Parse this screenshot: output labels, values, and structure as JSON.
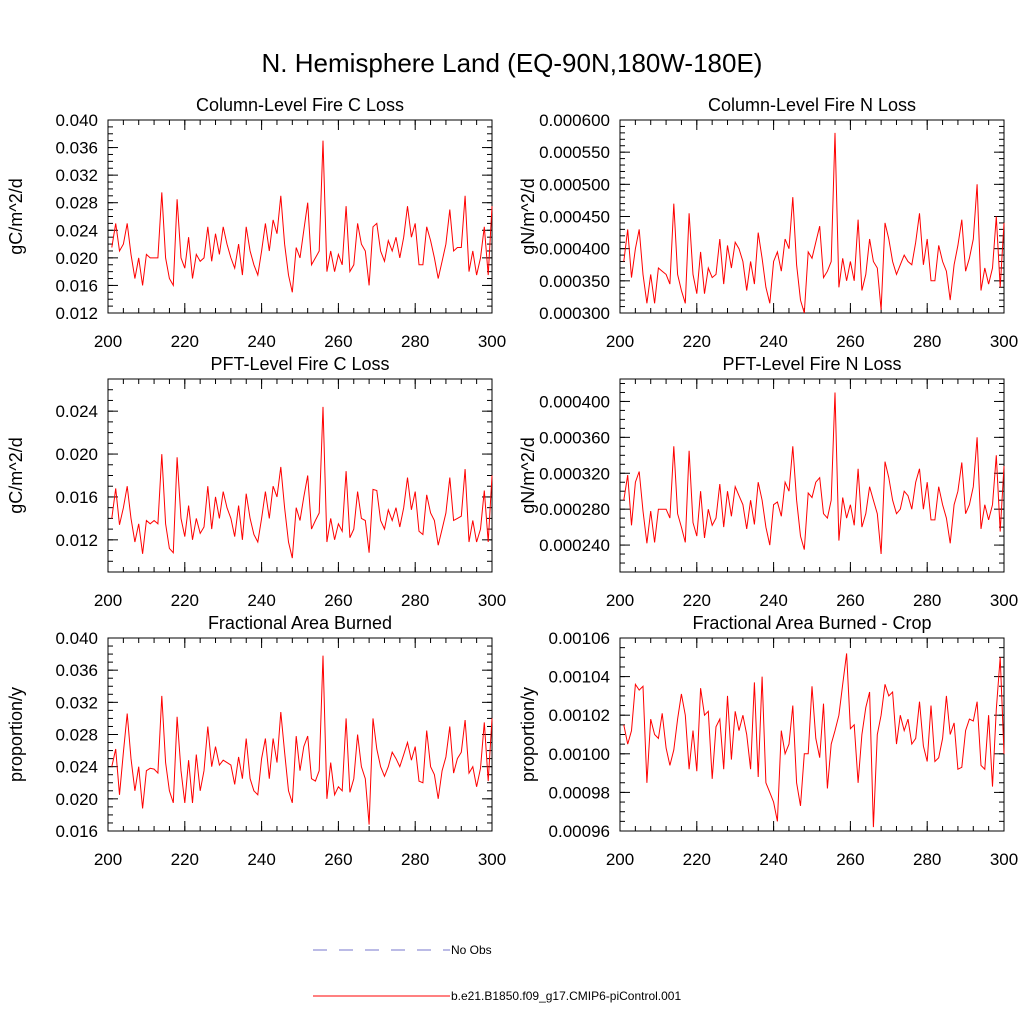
{
  "figure": {
    "title": "N. Hemisphere Land (EQ-90N,180W-180E)"
  },
  "legend": {
    "items": [
      {
        "label": "No Obs",
        "style": "dashed",
        "color": "#7777cc"
      },
      {
        "label": "b.e21.B1850.f09_g17.CMIP6-piControl.001",
        "style": "solid",
        "color": "#ff0000"
      }
    ]
  },
  "line_color": "#ff0000",
  "chart_data": [
    {
      "type": "line",
      "title": "Column-Level Fire C Loss",
      "xlabel": "",
      "ylabel": "gC/m^2/d",
      "xlim": [
        200,
        300
      ],
      "ylim": [
        0.012,
        0.04
      ],
      "xticks": [
        200,
        220,
        240,
        260,
        280,
        300
      ],
      "xtick_labels": [
        "200",
        "220",
        "240",
        "260",
        "280",
        "300"
      ],
      "yticks": [
        0.012,
        0.016,
        0.02,
        0.024,
        0.028,
        0.032,
        0.036,
        0.04
      ],
      "ytick_labels": [
        "0.012",
        "0.016",
        "0.020",
        "0.024",
        "0.028",
        "0.032",
        "0.036",
        "0.040"
      ],
      "yminor": 0.001,
      "x_start": 201,
      "series": [
        {
          "name": "b.e21.B1850.f09_g17.CMIP6-piControl.001",
          "values": [
            0.0215,
            0.025,
            0.021,
            0.022,
            0.025,
            0.0205,
            0.017,
            0.02,
            0.016,
            0.0205,
            0.02,
            0.02,
            0.02,
            0.0295,
            0.02,
            0.017,
            0.016,
            0.0285,
            0.02,
            0.0185,
            0.023,
            0.017,
            0.0205,
            0.0195,
            0.02,
            0.0245,
            0.0195,
            0.0235,
            0.0205,
            0.0245,
            0.022,
            0.02,
            0.0185,
            0.022,
            0.0175,
            0.0245,
            0.021,
            0.019,
            0.0175,
            0.021,
            0.025,
            0.021,
            0.0255,
            0.0235,
            0.029,
            0.022,
            0.0175,
            0.015,
            0.0215,
            0.02,
            0.024,
            0.028,
            0.019,
            0.02,
            0.021,
            0.037,
            0.018,
            0.021,
            0.018,
            0.0205,
            0.019,
            0.0275,
            0.018,
            0.019,
            0.025,
            0.022,
            0.021,
            0.016,
            0.0245,
            0.025,
            0.021,
            0.0195,
            0.0225,
            0.021,
            0.023,
            0.02,
            0.023,
            0.0275,
            0.023,
            0.025,
            0.019,
            0.019,
            0.0245,
            0.0225,
            0.02,
            0.017,
            0.0195,
            0.022,
            0.027,
            0.021,
            0.0215,
            0.0215,
            0.029,
            0.018,
            0.021,
            0.0175,
            0.02,
            0.0245,
            0.0175,
            0.0275
          ]
        }
      ]
    },
    {
      "type": "line",
      "title": "Column-Level Fire N Loss",
      "xlabel": "",
      "ylabel": "gN/m^2/d",
      "xlim": [
        200,
        300
      ],
      "ylim": [
        0.0003,
        0.0006
      ],
      "xticks": [
        200,
        220,
        240,
        260,
        280,
        300
      ],
      "xtick_labels": [
        "200",
        "220",
        "240",
        "260",
        "280",
        "300"
      ],
      "yticks": [
        0.0003,
        0.00035,
        0.0004,
        0.00045,
        0.0005,
        0.00055,
        0.0006
      ],
      "ytick_labels": [
        "0.000300",
        "0.000350",
        "0.000400",
        "0.000450",
        "0.000500",
        "0.000550",
        "0.000600"
      ],
      "yminor": 1e-05,
      "x_start": 201,
      "series": [
        {
          "name": "b.e21.B1850.f09_g17.CMIP6-piControl.001",
          "values": [
            0.00038,
            0.00043,
            0.000355,
            0.0004,
            0.00043,
            0.00036,
            0.000315,
            0.00036,
            0.000315,
            0.00037,
            0.000365,
            0.00036,
            0.000345,
            0.00047,
            0.00036,
            0.000335,
            0.000315,
            0.000455,
            0.00036,
            0.00033,
            0.000395,
            0.00033,
            0.00037,
            0.000355,
            0.00036,
            0.000415,
            0.000345,
            0.000405,
            0.00037,
            0.00041,
            0.0004,
            0.00038,
            0.000335,
            0.00038,
            0.000345,
            0.000425,
            0.000385,
            0.00034,
            0.000315,
            0.00038,
            0.000395,
            0.000365,
            0.000415,
            0.0004,
            0.00048,
            0.000375,
            0.00032,
            0.0003,
            0.000395,
            0.000385,
            0.00041,
            0.000435,
            0.000355,
            0.000365,
            0.00038,
            0.00058,
            0.00034,
            0.000385,
            0.00035,
            0.00038,
            0.00035,
            0.000445,
            0.000335,
            0.00036,
            0.000415,
            0.00038,
            0.00037,
            0.000305,
            0.00044,
            0.000415,
            0.00038,
            0.00036,
            0.000375,
            0.00039,
            0.00038,
            0.000375,
            0.00041,
            0.000455,
            0.000375,
            0.000415,
            0.00035,
            0.00035,
            0.000405,
            0.00038,
            0.000365,
            0.00032,
            0.000375,
            0.000405,
            0.000445,
            0.000365,
            0.000385,
            0.000415,
            0.0005,
            0.000335,
            0.00037,
            0.000345,
            0.00037,
            0.00045,
            0.00034,
            0.00044
          ]
        }
      ]
    },
    {
      "type": "line",
      "title": "PFT-Level Fire C Loss",
      "xlabel": "",
      "ylabel": "gC/m^2/d",
      "xlim": [
        200,
        300
      ],
      "ylim": [
        0.009,
        0.027
      ],
      "xticks": [
        200,
        220,
        240,
        260,
        280,
        300
      ],
      "xtick_labels": [
        "200",
        "220",
        "240",
        "260",
        "280",
        "300"
      ],
      "yticks": [
        0.012,
        0.016,
        0.02,
        0.024
      ],
      "ytick_labels": [
        "0.012",
        "0.016",
        "0.020",
        "0.024"
      ],
      "yminor": 0.001,
      "x_start": 201,
      "series": [
        {
          "name": "b.e21.B1850.f09_g17.CMIP6-piControl.001",
          "values": [
            0.014,
            0.0168,
            0.0134,
            0.015,
            0.017,
            0.014,
            0.0118,
            0.0135,
            0.0107,
            0.0138,
            0.0135,
            0.0138,
            0.0135,
            0.02,
            0.0135,
            0.0112,
            0.0108,
            0.0197,
            0.014,
            0.0123,
            0.0152,
            0.012,
            0.014,
            0.0126,
            0.0132,
            0.017,
            0.013,
            0.016,
            0.014,
            0.0165,
            0.015,
            0.014,
            0.0123,
            0.0152,
            0.012,
            0.0163,
            0.014,
            0.0125,
            0.0118,
            0.014,
            0.0165,
            0.014,
            0.017,
            0.016,
            0.0188,
            0.015,
            0.0118,
            0.0103,
            0.015,
            0.0138,
            0.016,
            0.018,
            0.013,
            0.0138,
            0.0145,
            0.0244,
            0.0118,
            0.014,
            0.012,
            0.0135,
            0.0128,
            0.0184,
            0.0122,
            0.013,
            0.0165,
            0.014,
            0.0138,
            0.0108,
            0.0167,
            0.0166,
            0.0138,
            0.013,
            0.0148,
            0.0138,
            0.015,
            0.0132,
            0.015,
            0.0178,
            0.0148,
            0.0165,
            0.0128,
            0.0125,
            0.0162,
            0.0145,
            0.0138,
            0.0115,
            0.013,
            0.0145,
            0.0178,
            0.0138,
            0.014,
            0.0142,
            0.0186,
            0.0118,
            0.0138,
            0.0118,
            0.013,
            0.0166,
            0.0118,
            0.018
          ]
        }
      ]
    },
    {
      "type": "line",
      "title": "PFT-Level Fire N Loss",
      "xlabel": "",
      "ylabel": "gN/m^2/d",
      "xlim": [
        200,
        300
      ],
      "ylim": [
        0.00021,
        0.000425
      ],
      "xticks": [
        200,
        220,
        240,
        260,
        280,
        300
      ],
      "xtick_labels": [
        "200",
        "220",
        "240",
        "260",
        "280",
        "300"
      ],
      "yticks": [
        0.00024,
        0.00028,
        0.00032,
        0.00036,
        0.0004
      ],
      "ytick_labels": [
        "0.000240",
        "0.000280",
        "0.000320",
        "0.000360",
        "0.000400"
      ],
      "yminor": 1e-05,
      "x_start": 201,
      "series": [
        {
          "name": "b.e21.B1850.f09_g17.CMIP6-piControl.001",
          "values": [
            0.00029,
            0.000318,
            0.000262,
            0.00031,
            0.000322,
            0.000278,
            0.000242,
            0.000278,
            0.000243,
            0.00028,
            0.00028,
            0.00028,
            0.00027,
            0.00035,
            0.000275,
            0.00026,
            0.000243,
            0.000345,
            0.000265,
            0.00025,
            0.0003,
            0.000248,
            0.00028,
            0.000262,
            0.00027,
            0.000308,
            0.00026,
            0.0003,
            0.000272,
            0.000305,
            0.000295,
            0.000285,
            0.000258,
            0.00029,
            0.000263,
            0.00031,
            0.00029,
            0.00026,
            0.00024,
            0.000285,
            0.000288,
            0.000272,
            0.00031,
            0.0003,
            0.00035,
            0.00029,
            0.00025,
            0.000235,
            0.000298,
            0.000293,
            0.00031,
            0.000315,
            0.000275,
            0.00027,
            0.00029,
            0.00041,
            0.000245,
            0.000293,
            0.00027,
            0.000285,
            0.000262,
            0.000325,
            0.00026,
            0.000275,
            0.000305,
            0.00029,
            0.000275,
            0.00023,
            0.000333,
            0.000315,
            0.00029,
            0.000275,
            0.00028,
            0.0003,
            0.000295,
            0.00028,
            0.00031,
            0.000325,
            0.00028,
            0.00031,
            0.000268,
            0.000268,
            0.000305,
            0.000285,
            0.00027,
            0.000242,
            0.000285,
            0.0003,
            0.000332,
            0.000275,
            0.000285,
            0.000305,
            0.00036,
            0.000258,
            0.000285,
            0.000268,
            0.000285,
            0.00034,
            0.000255,
            0.000328
          ]
        }
      ]
    },
    {
      "type": "line",
      "title": "Fractional Area Burned",
      "xlabel": "",
      "ylabel": "proportion/y",
      "xlim": [
        200,
        300
      ],
      "ylim": [
        0.016,
        0.04
      ],
      "xticks": [
        200,
        220,
        240,
        260,
        280,
        300
      ],
      "xtick_labels": [
        "200",
        "220",
        "240",
        "260",
        "280",
        "300"
      ],
      "yticks": [
        0.016,
        0.02,
        0.024,
        0.028,
        0.032,
        0.036,
        0.04
      ],
      "ytick_labels": [
        "0.016",
        "0.020",
        "0.024",
        "0.028",
        "0.032",
        "0.036",
        "0.040"
      ],
      "yminor": 0.001,
      "x_start": 201,
      "series": [
        {
          "name": "b.e21.B1850.f09_g17.CMIP6-piControl.001",
          "values": [
            0.024,
            0.0262,
            0.0205,
            0.0258,
            0.0306,
            0.025,
            0.021,
            0.024,
            0.0188,
            0.0235,
            0.0238,
            0.0237,
            0.0232,
            0.0328,
            0.0245,
            0.021,
            0.0195,
            0.0302,
            0.0235,
            0.0195,
            0.0248,
            0.0195,
            0.0255,
            0.021,
            0.0235,
            0.029,
            0.024,
            0.0265,
            0.0242,
            0.0248,
            0.0245,
            0.0242,
            0.0218,
            0.0252,
            0.0225,
            0.0275,
            0.0225,
            0.021,
            0.0205,
            0.025,
            0.0275,
            0.0225,
            0.0275,
            0.0245,
            0.0308,
            0.0258,
            0.021,
            0.0195,
            0.0278,
            0.0235,
            0.0265,
            0.0278,
            0.0225,
            0.0222,
            0.0235,
            0.0378,
            0.02,
            0.0245,
            0.0205,
            0.0215,
            0.021,
            0.03,
            0.0208,
            0.0225,
            0.028,
            0.024,
            0.0225,
            0.0168,
            0.03,
            0.0262,
            0.024,
            0.0228,
            0.024,
            0.0258,
            0.025,
            0.024,
            0.0255,
            0.027,
            0.0248,
            0.0265,
            0.0222,
            0.022,
            0.0285,
            0.024,
            0.023,
            0.02,
            0.0235,
            0.0252,
            0.029,
            0.0232,
            0.025,
            0.0258,
            0.0298,
            0.0232,
            0.024,
            0.0215,
            0.0238,
            0.0295,
            0.0222,
            0.03
          ]
        }
      ]
    },
    {
      "type": "line",
      "title": "Fractional Area Burned - Crop",
      "xlabel": "",
      "ylabel": "proportion/y",
      "xlim": [
        200,
        300
      ],
      "ylim": [
        0.00096,
        0.00106
      ],
      "xticks": [
        200,
        220,
        240,
        260,
        280,
        300
      ],
      "xtick_labels": [
        "200",
        "220",
        "240",
        "260",
        "280",
        "300"
      ],
      "yticks": [
        0.00096,
        0.00098,
        0.001,
        0.00102,
        0.00104,
        0.00106
      ],
      "ytick_labels": [
        "0.00096",
        "0.00098",
        "0.00100",
        "0.00102",
        "0.00104",
        "0.00106"
      ],
      "yminor": 5e-06,
      "x_start": 201,
      "series": [
        {
          "name": "b.e21.B1850.f09_g17.CMIP6-piControl.001",
          "values": [
            0.001015,
            0.001005,
            0.001012,
            0.001036,
            0.001033,
            0.001035,
            0.000985,
            0.001018,
            0.00101,
            0.001008,
            0.001021,
            0.001003,
            0.000994,
            0.001002,
            0.001018,
            0.001031,
            0.00102,
            0.000992,
            0.001012,
            0.000991,
            0.001034,
            0.00102,
            0.001022,
            0.000987,
            0.001014,
            0.001018,
            0.000992,
            0.00103,
            0.000997,
            0.001022,
            0.001012,
            0.00102,
            0.00101,
            0.000992,
            0.001037,
            0.000988,
            0.00104,
            0.000985,
            0.00098,
            0.000975,
            0.000965,
            0.001012,
            0.001,
            0.001005,
            0.001025,
            0.000985,
            0.000973,
            0.001,
            0.001,
            0.001035,
            0.001008,
            0.000998,
            0.001026,
            0.000982,
            0.001005,
            0.001012,
            0.00102,
            0.001036,
            0.001052,
            0.001013,
            0.001015,
            0.000985,
            0.00101,
            0.001024,
            0.001032,
            0.000962,
            0.00101,
            0.00102,
            0.001036,
            0.00103,
            0.001032,
            0.001005,
            0.00102,
            0.001012,
            0.001018,
            0.001005,
            0.001008,
            0.001027,
            0.001004,
            0.000996,
            0.001025,
            0.000996,
            0.000998,
            0.001008,
            0.00103,
            0.00101,
            0.001016,
            0.000992,
            0.000993,
            0.001012,
            0.001018,
            0.001017,
            0.001027,
            0.000994,
            0.000992,
            0.00102,
            0.000983,
            0.001023,
            0.00105,
            0.001
          ]
        }
      ]
    }
  ]
}
